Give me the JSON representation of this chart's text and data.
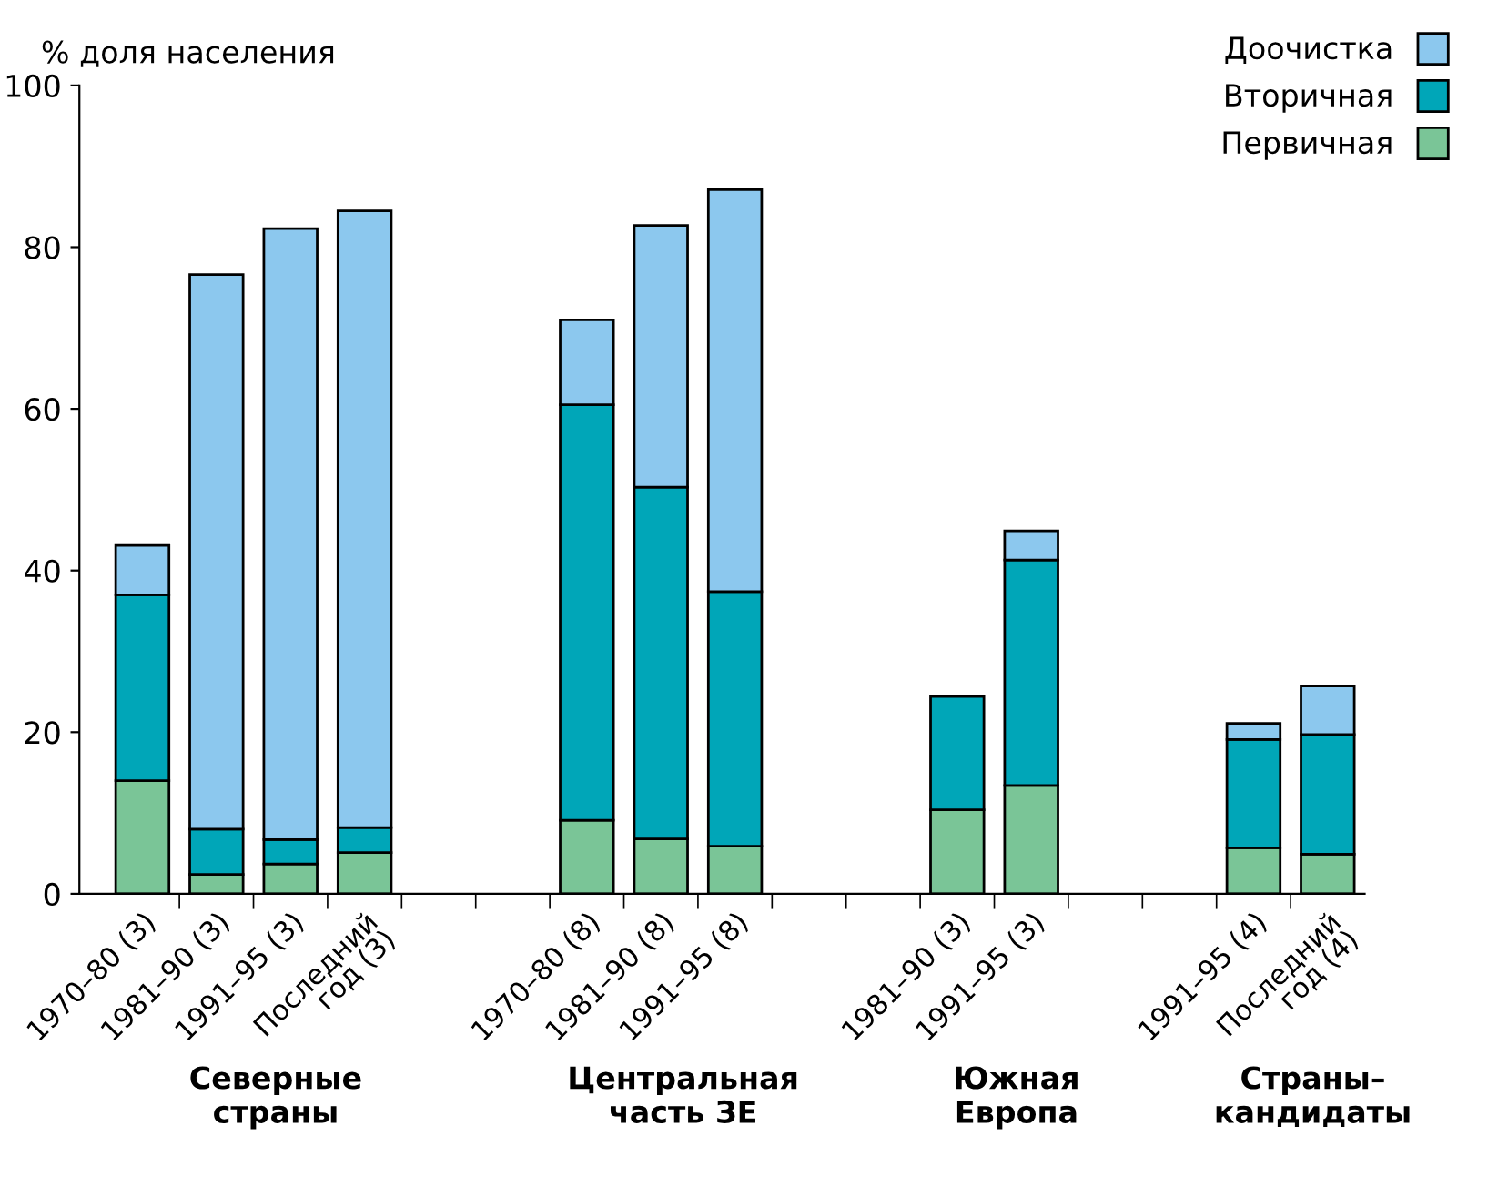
{
  "chart_data": {
    "type": "bar",
    "stacked": true,
    "ylabel": "% доля населения",
    "categories": [
      "1970–80 (3)",
      "1981–90 (3)",
      "1991–95 (3)",
      "Последний\nгод (3)",
      null,
      null,
      "1970–80 (8)",
      "1981–90 (8)",
      "1991–95 (8)",
      null,
      null,
      "1981–90 (3)",
      "1991–95 (3)",
      null,
      null,
      "1991–95 (4)",
      "Последний\nгод (4)"
    ],
    "series": [
      {
        "name": "Первичная",
        "color": "#7ac597",
        "values": [
          14.0,
          2.4,
          3.7,
          5.1,
          null,
          null,
          9.1,
          6.8,
          5.9,
          null,
          null,
          10.4,
          13.4,
          null,
          null,
          5.7,
          4.9
        ]
      },
      {
        "name": "Вторичная",
        "color": "#00a6b8",
        "values": [
          23.0,
          5.6,
          3.0,
          3.1,
          null,
          null,
          51.4,
          43.5,
          31.5,
          null,
          null,
          14.0,
          27.9,
          null,
          null,
          13.4,
          14.8
        ]
      },
      {
        "name": "Доочистка",
        "color": "#8cc8ee",
        "values": [
          6.1,
          68.6,
          75.6,
          76.3,
          null,
          null,
          10.5,
          32.4,
          49.7,
          null,
          null,
          null,
          3.6,
          null,
          null,
          2.0,
          6.0
        ]
      }
    ],
    "ylim": [
      0,
      100
    ],
    "yticks": [
      0,
      20,
      40,
      60,
      80,
      100
    ],
    "grid": false,
    "legend": "top right",
    "annotations": [
      "Северные\nстраны",
      "Центральная\nчасть ЗЕ",
      "Южная\nЕвропа",
      "Страны–\nкандидаты"
    ]
  }
}
